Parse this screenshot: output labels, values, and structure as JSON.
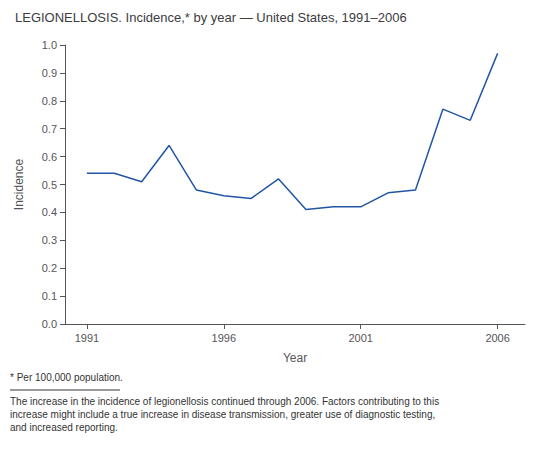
{
  "chart_data": {
    "type": "line",
    "title": "LEGIONELLOSIS. Incidence,* by year — United States, 1991–2006",
    "x": [
      1991,
      1992,
      1993,
      1994,
      1995,
      1996,
      1997,
      1998,
      1999,
      2000,
      2001,
      2002,
      2003,
      2004,
      2005,
      2006
    ],
    "values": [
      0.54,
      0.54,
      0.51,
      0.64,
      0.48,
      0.46,
      0.45,
      0.52,
      0.41,
      0.42,
      0.42,
      0.47,
      0.48,
      0.77,
      0.73,
      0.97
    ],
    "color": "#2255a4",
    "xlabel": "Year",
    "ylabel": "Incidence",
    "xlim": [
      1990.2,
      2007.0
    ],
    "xticks": [
      1991,
      1996,
      2001,
      2006
    ],
    "ylim": [
      0,
      1.0
    ],
    "yticks": [
      {
        "value": 0,
        "label": "0.0"
      },
      0.1,
      0.2,
      0.3,
      0.4,
      0.5,
      0.6,
      0.7,
      0.8,
      0.9,
      {
        "value": 1.0,
        "label": "1.0"
      }
    ],
    "grid": false,
    "annotations": [
      "* Per 100,000 population.",
      "The increase in the incidence of legionellosis continued through 2006. Factors contributing to this\nincrease might include a true increase in disease transmission, greater use of diagnostic testing,\nand increased reporting."
    ]
  }
}
